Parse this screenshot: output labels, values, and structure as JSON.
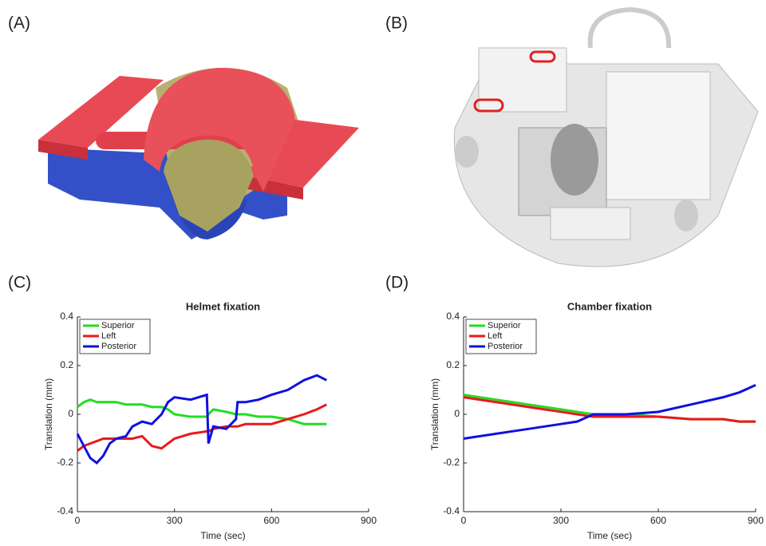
{
  "panel_labels": [
    "(A)",
    "(B)",
    "(C)",
    "(D)"
  ],
  "chart_data": [
    {
      "type": "line",
      "title": "Helmet fixation",
      "xlabel": "Time (sec)",
      "ylabel": "Translation (mm)",
      "x": [
        0,
        20,
        40,
        60,
        80,
        100,
        120,
        150,
        170,
        200,
        230,
        260,
        280,
        300,
        350,
        400,
        405,
        420,
        460,
        490,
        495,
        520,
        560,
        600,
        650,
        700,
        740,
        770
      ],
      "series": [
        {
          "name": "Superior",
          "color": "#22dd22",
          "values": [
            0.03,
            0.05,
            0.06,
            0.05,
            0.05,
            0.05,
            0.05,
            0.04,
            0.04,
            0.04,
            0.03,
            0.03,
            0.02,
            0,
            -0.01,
            -0.01,
            0,
            0.02,
            0.01,
            0,
            0,
            0,
            -0.01,
            -0.01,
            -0.02,
            -0.04,
            -0.04,
            -0.04
          ]
        },
        {
          "name": "Left",
          "color": "#e8191c",
          "values": [
            -0.15,
            -0.13,
            -0.12,
            -0.11,
            -0.1,
            -0.1,
            -0.1,
            -0.1,
            -0.1,
            -0.09,
            -0.13,
            -0.14,
            -0.12,
            -0.1,
            -0.08,
            -0.07,
            -0.07,
            -0.06,
            -0.05,
            -0.05,
            -0.05,
            -0.04,
            -0.04,
            -0.04,
            -0.02,
            0,
            0.02,
            0.04
          ]
        },
        {
          "name": "Posterior",
          "color": "#1010e0",
          "values": [
            -0.08,
            -0.13,
            -0.18,
            -0.2,
            -0.17,
            -0.12,
            -0.1,
            -0.09,
            -0.05,
            -0.03,
            -0.04,
            0,
            0.05,
            0.07,
            0.06,
            0.08,
            -0.12,
            -0.05,
            -0.06,
            -0.02,
            0.05,
            0.05,
            0.06,
            0.08,
            0.1,
            0.14,
            0.16,
            0.14
          ]
        }
      ],
      "xlim": [
        0,
        900
      ],
      "xticks": [
        0,
        300,
        600,
        900
      ],
      "ylim": [
        -0.4,
        0.4
      ],
      "yticks": [
        -0.4,
        -0.2,
        0,
        0.2,
        0.4
      ],
      "legend": "upper-left"
    },
    {
      "type": "line",
      "title": "Chamber fixation",
      "xlabel": "Time (sec)",
      "ylabel": "Translation (mm)",
      "x": [
        0,
        100,
        200,
        300,
        350,
        400,
        500,
        600,
        700,
        800,
        850,
        900
      ],
      "series": [
        {
          "name": "Superior",
          "color": "#22dd22",
          "values": [
            0.08,
            0.06,
            0.04,
            0.02,
            0.01,
            0,
            0,
            -0.01,
            -0.02,
            -0.02,
            -0.03,
            -0.03
          ]
        },
        {
          "name": "Left",
          "color": "#e8191c",
          "values": [
            0.07,
            0.05,
            0.03,
            0.01,
            0,
            -0.01,
            -0.01,
            -0.01,
            -0.02,
            -0.02,
            -0.03,
            -0.03
          ]
        },
        {
          "name": "Posterior",
          "color": "#1010e0",
          "values": [
            -0.1,
            -0.08,
            -0.06,
            -0.04,
            -0.03,
            0,
            0,
            0.01,
            0.04,
            0.07,
            0.09,
            0.12
          ]
        }
      ],
      "xlim": [
        0,
        900
      ],
      "xticks": [
        0,
        300,
        600,
        900
      ],
      "ylim": [
        -0.4,
        0.4
      ],
      "yticks": [
        -0.4,
        -0.2,
        0,
        0.2,
        0.4
      ],
      "legend": "upper-left"
    }
  ]
}
